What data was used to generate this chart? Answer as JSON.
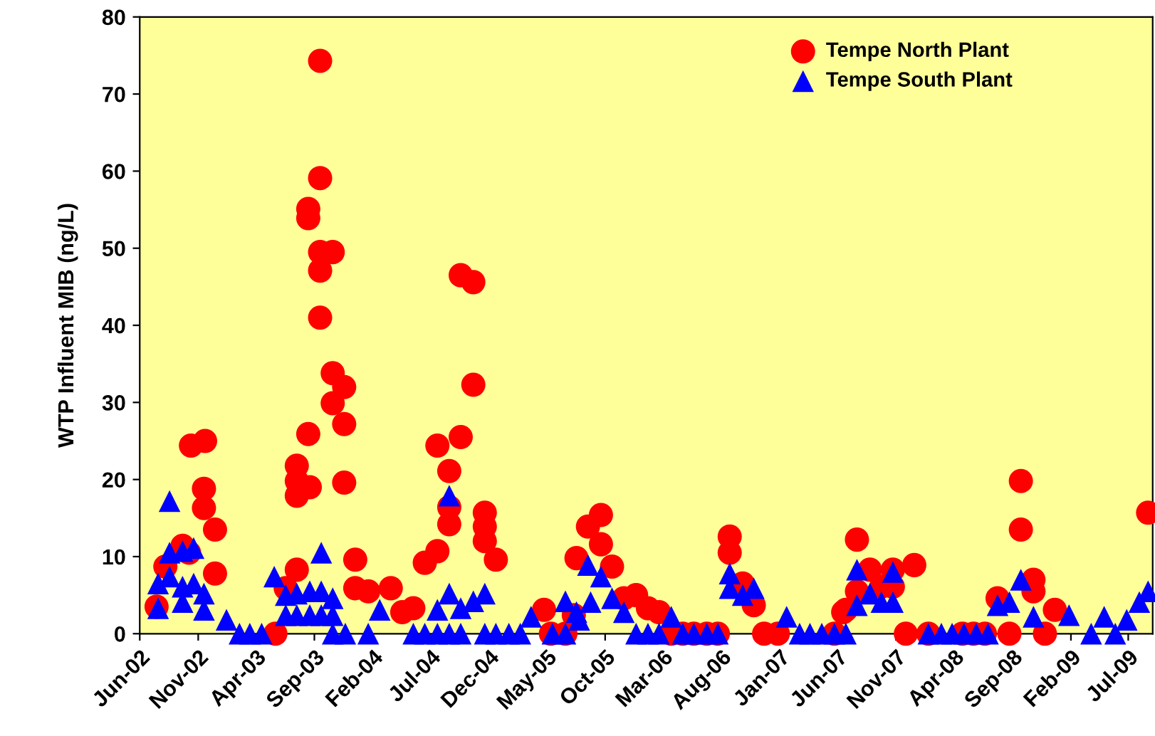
{
  "chart_data": {
    "type": "scatter",
    "ylabel": "WTP Influent MIB (ng/L)",
    "xlim": [
      "2002-06-01",
      "2009-09-03"
    ],
    "ylim": [
      0,
      80
    ],
    "yticks": [
      0,
      10,
      20,
      30,
      40,
      50,
      60,
      70,
      80
    ],
    "xticks": [
      {
        "value": "2002-06-01",
        "label": "Jun-02"
      },
      {
        "value": "2002-11-01",
        "label": "Nov-02"
      },
      {
        "value": "2003-04-01",
        "label": "Apr-03"
      },
      {
        "value": "2003-09-01",
        "label": "Sep-03"
      },
      {
        "value": "2004-02-01",
        "label": "Feb-04"
      },
      {
        "value": "2004-07-01",
        "label": "Jul-04"
      },
      {
        "value": "2004-12-01",
        "label": "Dec-04"
      },
      {
        "value": "2005-05-01",
        "label": "May-05"
      },
      {
        "value": "2005-10-01",
        "label": "Oct-05"
      },
      {
        "value": "2006-03-01",
        "label": "Mar-06"
      },
      {
        "value": "2006-08-01",
        "label": "Aug-06"
      },
      {
        "value": "2007-01-01",
        "label": "Jan-07"
      },
      {
        "value": "2007-06-01",
        "label": "Jun-07"
      },
      {
        "value": "2007-11-01",
        "label": "Nov-07"
      },
      {
        "value": "2008-04-01",
        "label": "Apr-08"
      },
      {
        "value": "2008-09-01",
        "label": "Sep-08"
      },
      {
        "value": "2009-02-01",
        "label": "Feb-09"
      },
      {
        "value": "2009-07-01",
        "label": "Jul-09"
      }
    ],
    "grid": false,
    "legend": "top right",
    "series": [
      {
        "name": "Tempe North Plant",
        "color": "#ff0000",
        "marker": "circle",
        "x": [
          "2002-07-15",
          "2002-08-07",
          "2002-09-21",
          "2002-10-08",
          "2002-10-13",
          "2002-11-19",
          "2002-11-16",
          "2002-11-16",
          "2002-12-15",
          "2002-12-15",
          "2003-05-22",
          "2003-06-18",
          "2003-07-17",
          "2003-07-17",
          "2003-07-17",
          "2003-07-17",
          "2003-08-20",
          "2003-08-16",
          "2003-08-16",
          "2003-08-16",
          "2003-09-16",
          "2003-09-16",
          "2003-09-16",
          "2003-10-19",
          "2003-09-16",
          "2003-09-16",
          "2003-10-19",
          "2003-11-18",
          "2003-10-19",
          "2003-11-18",
          "2003-11-18",
          "2003-12-17",
          "2003-12-17",
          "2004-01-20",
          "2004-03-19",
          "2004-04-18",
          "2004-05-17",
          "2004-06-16",
          "2004-07-19",
          "2004-07-19",
          "2004-08-19",
          "2004-08-19",
          "2004-08-19",
          "2004-09-18",
          "2004-09-18",
          "2004-10-21",
          "2004-10-21",
          "2004-11-20",
          "2004-11-20",
          "2004-11-20",
          "2004-12-19",
          "2005-04-24",
          "2005-05-12",
          "2005-06-19",
          "2005-07-11",
          "2005-07-18",
          "2005-08-17",
          "2005-09-20",
          "2005-09-20",
          "2005-10-19",
          "2005-11-19",
          "2005-12-21",
          "2006-01-21",
          "2006-02-19",
          "2006-03-23",
          "2006-04-22",
          "2006-05-21",
          "2006-06-24",
          "2006-07-23",
          "2006-08-23",
          "2006-08-23",
          "2006-09-26",
          "2006-10-25",
          "2006-11-21",
          "2006-12-27",
          "2007-06-16",
          "2007-05-24",
          "2007-06-23",
          "2007-07-22",
          "2007-07-22",
          "2007-08-25",
          "2007-09-24",
          "2007-10-24",
          "2007-10-24",
          "2007-11-27",
          "2007-12-19",
          "2008-01-25",
          "2008-04-23",
          "2008-05-22",
          "2008-06-21",
          "2008-07-24",
          "2008-08-24",
          "2008-09-23",
          "2008-09-23",
          "2008-10-26",
          "2008-10-26",
          "2008-11-25",
          "2008-12-21",
          "2009-08-22"
        ],
        "values": [
          3.5,
          8.7,
          11.4,
          10.5,
          24.4,
          25,
          18.8,
          16.3,
          13.5,
          7.8,
          0,
          5.9,
          8.3,
          21.8,
          19.8,
          17.9,
          19,
          25.9,
          55.1,
          53.9,
          74.3,
          59.1,
          49.5,
          49.5,
          47.1,
          41,
          33.8,
          32,
          29.9,
          27.2,
          19.6,
          9.6,
          5.9,
          5.5,
          5.9,
          2.8,
          3.3,
          9.2,
          10.7,
          24.4,
          21.1,
          16.4,
          14.2,
          25.5,
          46.5,
          45.6,
          32.3,
          15.7,
          13.9,
          12,
          9.6,
          3.1,
          0,
          0,
          2.4,
          9.8,
          13.9,
          15.4,
          11.6,
          8.7,
          4.6,
          5.0,
          3.3,
          2.8,
          0,
          0,
          0,
          0,
          0,
          12.6,
          10.5,
          6.5,
          3.7,
          0,
          0,
          2.8,
          0,
          3.1,
          5.5,
          12.2,
          8.3,
          6.1,
          8.3,
          6.1,
          0,
          8.9,
          0,
          0,
          0,
          0,
          4.6,
          0,
          19.8,
          13.5,
          7.0,
          5.5,
          0,
          3.1,
          15.7
        ]
      },
      {
        "name": "Tempe South Plant",
        "color": "#0000ff",
        "marker": "triangle",
        "x": [
          "2002-07-19",
          "2002-07-19",
          "2002-08-18",
          "2002-08-18",
          "2002-09-21",
          "2002-10-20",
          "2002-08-18",
          "2002-09-21",
          "2002-09-21",
          "2002-10-20",
          "2002-11-16",
          "2002-11-16",
          "2003-01-14",
          "2003-02-17",
          "2003-03-16",
          "2003-04-16",
          "2003-05-19",
          "2003-06-18",
          "2003-06-18",
          "2003-07-17",
          "2003-08-20",
          "2003-09-19",
          "2003-10-19",
          "2003-07-17",
          "2003-08-20",
          "2003-09-19",
          "2003-10-19",
          "2003-09-19",
          "2003-10-19",
          "2003-11-21",
          "2004-01-20",
          "2004-02-19",
          "2004-05-17",
          "2004-06-16",
          "2004-07-19",
          "2004-08-19",
          "2004-09-18",
          "2004-07-19",
          "2004-08-19",
          "2004-08-19",
          "2004-09-18",
          "2004-10-21",
          "2004-11-20",
          "2004-11-20",
          "2004-12-19",
          "2005-01-22",
          "2005-02-21",
          "2005-03-21",
          "2005-05-16",
          "2005-06-19",
          "2005-06-19",
          "2005-07-18",
          "2005-07-25",
          "2005-08-17",
          "2005-08-24",
          "2005-09-20",
          "2005-10-19",
          "2005-11-19",
          "2005-12-21",
          "2006-01-21",
          "2006-02-19",
          "2006-03-23",
          "2006-04-22",
          "2006-05-21",
          "2006-06-24",
          "2006-07-23",
          "2006-08-23",
          "2006-08-23",
          "2006-09-26",
          "2006-10-25",
          "2007-01-19",
          "2007-02-22",
          "2007-03-21",
          "2007-04-21",
          "2007-05-24",
          "2007-06-23",
          "2007-07-22",
          "2007-07-22",
          "2007-08-25",
          "2007-09-24",
          "2007-10-24",
          "2007-10-24",
          "2008-01-25",
          "2008-02-28",
          "2008-03-27",
          "2008-04-27",
          "2008-05-29",
          "2008-06-29",
          "2008-07-24",
          "2008-08-24",
          "2008-09-23",
          "2008-10-26",
          "2009-01-27",
          "2009-03-26",
          "2009-04-29",
          "2009-05-28",
          "2009-06-27",
          "2009-07-30",
          "2009-08-22"
        ],
        "values": [
          3.3,
          6.5,
          17.2,
          10.5,
          10.7,
          11.1,
          7.4,
          4.1,
          6.1,
          6.5,
          5.2,
          3.1,
          1.8,
          0,
          0,
          0,
          7.4,
          5.0,
          2.4,
          2.4,
          2.4,
          2.4,
          2.4,
          5.2,
          5.5,
          5.5,
          4.6,
          10.5,
          0,
          0,
          0,
          3.1,
          0,
          0,
          0,
          0,
          0,
          3.1,
          17.9,
          5.2,
          3.3,
          4.2,
          5.2,
          0,
          0,
          0,
          0,
          2.2,
          0,
          0,
          4.2,
          2.8,
          1.8,
          8.9,
          4.1,
          7.4,
          4.6,
          2.8,
          0,
          0,
          0,
          2.2,
          0,
          0,
          0,
          0,
          7.8,
          5.9,
          5.0,
          5.9,
          2.2,
          0,
          0,
          0,
          0,
          0,
          3.7,
          8.3,
          5.2,
          4.1,
          8.0,
          4.1,
          0,
          0,
          0,
          0,
          0,
          0,
          3.7,
          4.1,
          7.0,
          2.2,
          2.4,
          0,
          2.2,
          0,
          1.8,
          4.1,
          5.5
        ]
      }
    ]
  }
}
